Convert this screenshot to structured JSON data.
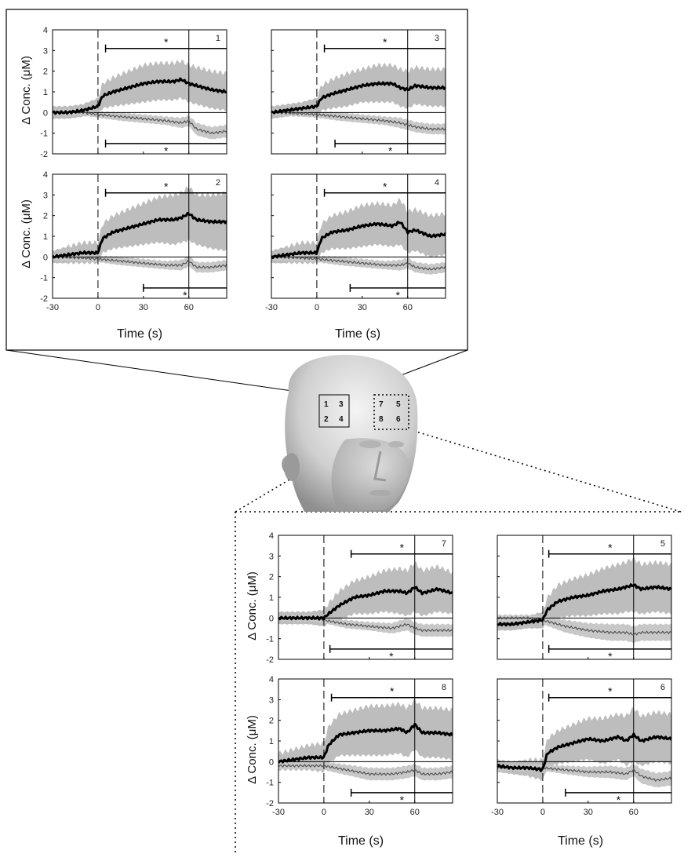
{
  "figure": {
    "ylabel": "Δ Conc. (μM)",
    "xlabel": "Time (s)",
    "xticks": [
      -30,
      0,
      30,
      60
    ],
    "yticks": [
      -2,
      -1,
      0,
      1,
      2,
      3,
      4
    ],
    "head_channel_labels": [
      "1",
      "3",
      "2",
      "4",
      "7",
      "5",
      "8",
      "6"
    ],
    "significance_marker": "*",
    "colors": {
      "mean_hbo": "#000000",
      "sd_band_hbo": "#bdbdbd",
      "mean_hbr": "#555555",
      "sd_band_hbr": "#c8c8c8"
    }
  },
  "chart_data": [
    {
      "type": "line",
      "channel": "1",
      "xlim": [
        -30,
        85
      ],
      "ylim": [
        -2,
        4
      ],
      "sig_hbo": [
        5,
        85
      ],
      "sig_hbr": [
        5,
        85
      ],
      "hbo": {
        "x": [
          -30,
          -20,
          -10,
          0,
          3,
          10,
          20,
          30,
          40,
          50,
          55,
          60,
          65,
          75,
          85
        ],
        "y": [
          0,
          0,
          0.1,
          0.3,
          0.8,
          1.0,
          1.2,
          1.4,
          1.5,
          1.5,
          1.6,
          1.4,
          1.3,
          1.1,
          1.0
        ],
        "sd": [
          0.3,
          0.3,
          0.3,
          0.4,
          0.6,
          0.7,
          0.8,
          0.9,
          0.9,
          0.9,
          0.9,
          0.9,
          0.9,
          0.9,
          0.9
        ]
      },
      "hbr": {
        "x": [
          -30,
          -10,
          0,
          15,
          30,
          45,
          55,
          60,
          65,
          75,
          85
        ],
        "y": [
          0,
          0,
          -0.1,
          -0.2,
          -0.3,
          -0.4,
          -0.5,
          -0.4,
          -0.8,
          -1.0,
          -0.9
        ],
        "sd": [
          0.15,
          0.15,
          0.15,
          0.2,
          0.2,
          0.2,
          0.25,
          0.25,
          0.3,
          0.3,
          0.3
        ]
      }
    },
    {
      "type": "line",
      "channel": "3",
      "xlim": [
        -30,
        85
      ],
      "ylim": [
        -2,
        4
      ],
      "sig_hbo": [
        5,
        85
      ],
      "sig_hbr": [
        12,
        85
      ],
      "hbo": {
        "x": [
          -30,
          -20,
          -10,
          0,
          3,
          10,
          20,
          30,
          40,
          50,
          55,
          60,
          65,
          75,
          85
        ],
        "y": [
          0,
          0.1,
          0.2,
          0.3,
          0.7,
          0.9,
          1.1,
          1.3,
          1.4,
          1.4,
          1.2,
          1.1,
          1.3,
          1.2,
          1.2
        ],
        "sd": [
          0.3,
          0.3,
          0.3,
          0.4,
          0.6,
          0.7,
          0.8,
          0.8,
          0.9,
          0.9,
          0.9,
          0.9,
          0.9,
          0.9,
          0.9
        ]
      },
      "hbr": {
        "x": [
          -30,
          -10,
          0,
          15,
          30,
          45,
          55,
          60,
          65,
          75,
          85
        ],
        "y": [
          0,
          -0.05,
          -0.1,
          -0.2,
          -0.3,
          -0.4,
          -0.5,
          -0.6,
          -0.7,
          -0.8,
          -0.8
        ],
        "sd": [
          0.15,
          0.15,
          0.15,
          0.2,
          0.2,
          0.2,
          0.25,
          0.25,
          0.25,
          0.25,
          0.25
        ]
      }
    },
    {
      "type": "line",
      "channel": "2",
      "xlim": [
        -30,
        85
      ],
      "ylim": [
        -2,
        4
      ],
      "sig_hbo": [
        5,
        85
      ],
      "sig_hbr": [
        30,
        85
      ],
      "hbo": {
        "x": [
          -30,
          -20,
          -10,
          0,
          3,
          10,
          20,
          30,
          40,
          50,
          55,
          60,
          65,
          75,
          85
        ],
        "y": [
          0,
          0.1,
          0.2,
          0.2,
          0.9,
          1.2,
          1.4,
          1.6,
          1.8,
          1.8,
          1.9,
          2.1,
          1.8,
          1.7,
          1.7
        ],
        "sd": [
          0.3,
          0.4,
          0.5,
          0.5,
          0.7,
          0.8,
          0.9,
          1.0,
          1.1,
          1.2,
          1.2,
          1.3,
          1.2,
          1.3,
          1.4
        ]
      },
      "hbr": {
        "x": [
          -30,
          -10,
          0,
          15,
          30,
          45,
          55,
          60,
          65,
          75,
          85
        ],
        "y": [
          0,
          -0.05,
          -0.1,
          -0.2,
          -0.3,
          -0.4,
          -0.4,
          -0.2,
          -0.5,
          -0.5,
          -0.4
        ],
        "sd": [
          0.15,
          0.15,
          0.15,
          0.2,
          0.2,
          0.2,
          0.25,
          0.25,
          0.25,
          0.25,
          0.25
        ]
      }
    },
    {
      "type": "line",
      "channel": "4",
      "xlim": [
        -30,
        85
      ],
      "ylim": [
        -2,
        4
      ],
      "sig_hbo": [
        5,
        85
      ],
      "sig_hbr": [
        22,
        85
      ],
      "hbo": {
        "x": [
          -30,
          -20,
          -10,
          0,
          3,
          10,
          20,
          30,
          40,
          50,
          55,
          60,
          65,
          75,
          85
        ],
        "y": [
          0,
          0.1,
          0.2,
          0.2,
          0.9,
          1.2,
          1.3,
          1.5,
          1.6,
          1.5,
          1.7,
          1.2,
          1.3,
          1.0,
          1.1
        ],
        "sd": [
          0.3,
          0.4,
          0.5,
          0.5,
          0.7,
          0.8,
          0.9,
          1.0,
          1.0,
          1.0,
          1.1,
          1.0,
          1.0,
          1.0,
          1.0
        ]
      },
      "hbr": {
        "x": [
          -30,
          -10,
          0,
          15,
          30,
          45,
          55,
          60,
          65,
          75,
          85
        ],
        "y": [
          0,
          -0.05,
          -0.1,
          -0.2,
          -0.3,
          -0.4,
          -0.4,
          -0.3,
          -0.5,
          -0.6,
          -0.5
        ],
        "sd": [
          0.15,
          0.15,
          0.15,
          0.2,
          0.2,
          0.2,
          0.25,
          0.25,
          0.25,
          0.25,
          0.25
        ]
      }
    },
    {
      "type": "line",
      "channel": "7",
      "xlim": [
        -30,
        85
      ],
      "ylim": [
        -2,
        4
      ],
      "sig_hbo": [
        18,
        85
      ],
      "sig_hbr": [
        4,
        85
      ],
      "hbo": {
        "x": [
          -30,
          -20,
          -10,
          0,
          3,
          10,
          20,
          30,
          40,
          50,
          55,
          60,
          65,
          75,
          85
        ],
        "y": [
          0,
          0,
          0,
          0,
          0.2,
          0.6,
          1.0,
          1.1,
          1.3,
          1.3,
          1.2,
          1.5,
          1.2,
          1.4,
          1.2
        ],
        "sd": [
          0.3,
          0.3,
          0.3,
          0.4,
          0.5,
          0.7,
          0.8,
          0.9,
          1.0,
          1.1,
          1.1,
          1.2,
          1.1,
          1.1,
          1.0
        ]
      },
      "hbr": {
        "x": [
          -30,
          -10,
          0,
          15,
          30,
          45,
          55,
          60,
          65,
          75,
          85
        ],
        "y": [
          0,
          0,
          -0.1,
          -0.3,
          -0.4,
          -0.5,
          -0.3,
          -0.5,
          -0.6,
          -0.6,
          -0.6
        ],
        "sd": [
          0.15,
          0.15,
          0.15,
          0.2,
          0.2,
          0.25,
          0.3,
          0.3,
          0.3,
          0.3,
          0.3
        ]
      }
    },
    {
      "type": "line",
      "channel": "5",
      "xlim": [
        -30,
        85
      ],
      "ylim": [
        -2,
        4
      ],
      "sig_hbo": [
        4,
        85
      ],
      "sig_hbr": [
        4,
        85
      ],
      "hbo": {
        "x": [
          -30,
          -20,
          -10,
          0,
          3,
          10,
          20,
          30,
          40,
          50,
          55,
          60,
          65,
          75,
          85
        ],
        "y": [
          -0.3,
          -0.3,
          -0.2,
          -0.1,
          0.4,
          0.8,
          1.0,
          1.1,
          1.3,
          1.4,
          1.5,
          1.6,
          1.4,
          1.5,
          1.4
        ],
        "sd": [
          0.3,
          0.3,
          0.3,
          0.4,
          0.6,
          0.8,
          0.9,
          1.0,
          1.1,
          1.2,
          1.2,
          1.3,
          1.2,
          1.2,
          1.2
        ]
      },
      "hbr": {
        "x": [
          -30,
          -10,
          0,
          15,
          30,
          45,
          55,
          60,
          65,
          75,
          85
        ],
        "y": [
          0,
          0,
          -0.1,
          -0.4,
          -0.6,
          -0.7,
          -0.7,
          -0.8,
          -0.7,
          -0.7,
          -0.7
        ],
        "sd": [
          0.15,
          0.15,
          0.2,
          0.3,
          0.35,
          0.4,
          0.4,
          0.4,
          0.4,
          0.4,
          0.4
        ]
      }
    },
    {
      "type": "line",
      "channel": "8",
      "xlim": [
        -30,
        85
      ],
      "ylim": [
        -2,
        4
      ],
      "sig_hbo": [
        5,
        85
      ],
      "sig_hbr": [
        18,
        85
      ],
      "hbo": {
        "x": [
          -30,
          -20,
          -10,
          0,
          3,
          10,
          20,
          30,
          40,
          50,
          55,
          60,
          65,
          75,
          85
        ],
        "y": [
          0,
          0.1,
          0.2,
          0.2,
          0.8,
          1.3,
          1.4,
          1.5,
          1.5,
          1.6,
          1.4,
          1.8,
          1.4,
          1.4,
          1.3
        ],
        "sd": [
          0.4,
          0.5,
          0.6,
          0.7,
          0.9,
          1.0,
          1.1,
          1.2,
          1.2,
          1.2,
          1.2,
          1.2,
          1.2,
          1.2,
          1.2
        ]
      },
      "hbr": {
        "x": [
          -30,
          -10,
          0,
          15,
          30,
          45,
          55,
          60,
          65,
          75,
          85
        ],
        "y": [
          -0.2,
          -0.2,
          -0.2,
          -0.4,
          -0.6,
          -0.6,
          -0.5,
          -0.4,
          -0.6,
          -0.6,
          -0.5
        ],
        "sd": [
          0.15,
          0.15,
          0.2,
          0.25,
          0.3,
          0.3,
          0.3,
          0.3,
          0.3,
          0.3,
          0.3
        ]
      }
    },
    {
      "type": "line",
      "channel": "6",
      "xlim": [
        -30,
        85
      ],
      "ylim": [
        -2,
        4
      ],
      "sig_hbo": [
        4,
        85
      ],
      "sig_hbr": [
        15,
        85
      ],
      "hbo": {
        "x": [
          -30,
          -20,
          -10,
          0,
          3,
          10,
          20,
          30,
          40,
          50,
          55,
          60,
          65,
          75,
          85
        ],
        "y": [
          -0.2,
          -0.3,
          -0.3,
          -0.4,
          0.4,
          0.7,
          0.9,
          1.1,
          1.0,
          1.2,
          1.0,
          1.3,
          1.0,
          1.2,
          1.1
        ],
        "sd": [
          0.3,
          0.3,
          0.4,
          0.5,
          0.7,
          0.8,
          0.9,
          1.0,
          1.1,
          1.1,
          1.2,
          1.3,
          1.2,
          1.2,
          1.2
        ]
      },
      "hbr": {
        "x": [
          -30,
          -10,
          0,
          15,
          30,
          45,
          55,
          60,
          65,
          75,
          85
        ],
        "y": [
          -0.3,
          -0.3,
          -0.3,
          -0.4,
          -0.5,
          -0.5,
          -0.6,
          -0.4,
          -0.7,
          -0.9,
          -0.8
        ],
        "sd": [
          0.15,
          0.15,
          0.15,
          0.2,
          0.25,
          0.3,
          0.3,
          0.3,
          0.35,
          0.35,
          0.35
        ]
      }
    }
  ]
}
